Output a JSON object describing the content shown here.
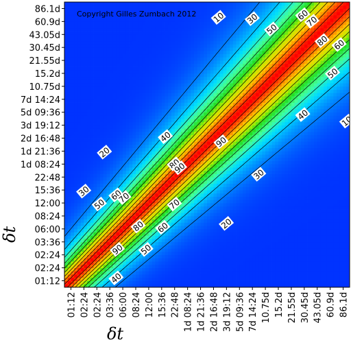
{
  "chart_data": {
    "type": "heatmap",
    "title": "",
    "xlabel": "δt",
    "ylabel": "δt",
    "copyright": "Copyright Gilles Zumbach 2012",
    "x_ticks": [
      "01:12",
      "02:24",
      "02:24",
      "03:36",
      "06:00",
      "08:24",
      "12:00",
      "15:36",
      "22:48",
      "1d 08:24",
      "1d 21:36",
      "2d 16:48",
      "3d 19:12",
      "5d 09:36",
      "7d 14:24",
      "10.75d",
      "15.2d",
      "21.55d",
      "30.45d",
      "43.05d",
      "60.9d",
      "86.1d"
    ],
    "y_ticks": [
      "01:12",
      "02:24",
      "02:24",
      "03:36",
      "06:00",
      "08:24",
      "12:00",
      "15:36",
      "22:48",
      "1d 08:24",
      "1d 21:36",
      "2d 16:48",
      "3d 19:12",
      "5d 09:36",
      "7d 14:24",
      "10.75d",
      "15.2d",
      "21.55d",
      "30.45d",
      "43.05d",
      "60.9d",
      "86.1d"
    ],
    "contour_levels": [
      10,
      20,
      30,
      40,
      50,
      60,
      70,
      80,
      90
    ],
    "contour_labels": [
      {
        "text": "10",
        "i": 11.4,
        "j": 20.3,
        "angle": -40
      },
      {
        "text": "30",
        "i": 14.0,
        "j": 20.2,
        "angle": -40
      },
      {
        "text": "50",
        "i": 15.5,
        "j": 19.4,
        "angle": -40
      },
      {
        "text": "60",
        "i": 17.9,
        "j": 20.5,
        "angle": -40
      },
      {
        "text": "70",
        "i": 18.6,
        "j": 20.0,
        "angle": -40
      },
      {
        "text": "80",
        "i": 19.4,
        "j": 18.5,
        "angle": -40
      },
      {
        "text": "60",
        "i": 20.7,
        "j": 18.2,
        "angle": -40
      },
      {
        "text": "50",
        "i": 20.2,
        "j": 16.0,
        "angle": -40
      },
      {
        "text": "40",
        "i": 17.9,
        "j": 12.8,
        "angle": -40
      },
      {
        "text": "10",
        "i": 21.3,
        "j": 12.3,
        "angle": -40
      },
      {
        "text": "30",
        "i": 14.5,
        "j": 8.2,
        "angle": -40
      },
      {
        "text": "20",
        "i": 12.0,
        "j": 4.4,
        "angle": -40
      },
      {
        "text": "40",
        "i": 7.3,
        "j": 11.1,
        "angle": -40
      },
      {
        "text": "20",
        "i": 2.6,
        "j": 9.9,
        "angle": -40
      },
      {
        "text": "80",
        "i": 8.0,
        "j": 9.0,
        "angle": -40
      },
      {
        "text": "90",
        "i": 8.4,
        "j": 8.7,
        "angle": -40
      },
      {
        "text": "90",
        "i": 11.6,
        "j": 10.7,
        "angle": -40
      },
      {
        "text": "70",
        "i": 8.0,
        "j": 5.9,
        "angle": -40
      },
      {
        "text": "60",
        "i": 7.1,
        "j": 4.1,
        "angle": -40
      },
      {
        "text": "80",
        "i": 5.2,
        "j": 4.2,
        "angle": -40
      },
      {
        "text": "30",
        "i": 1.0,
        "j": 6.9,
        "angle": -40
      },
      {
        "text": "50",
        "i": 2.2,
        "j": 5.9,
        "angle": -40
      },
      {
        "text": "60",
        "i": 3.5,
        "j": 6.6,
        "angle": -40
      },
      {
        "text": "70",
        "i": 4.1,
        "j": 6.4,
        "angle": -40
      },
      {
        "text": "90",
        "i": 3.6,
        "j": 2.4,
        "angle": -40
      },
      {
        "text": "50",
        "i": 5.8,
        "j": 2.4,
        "angle": -40
      },
      {
        "text": "40",
        "i": 3.5,
        "j": 0.2,
        "angle": -40
      }
    ],
    "colormap": [
      "#0033ff",
      "#0088ff",
      "#00ddff",
      "#44ff99",
      "#22dd22",
      "#bbee00",
      "#ffcc00",
      "#ff6600",
      "#ff0000"
    ],
    "legend": "none",
    "grid": false
  }
}
